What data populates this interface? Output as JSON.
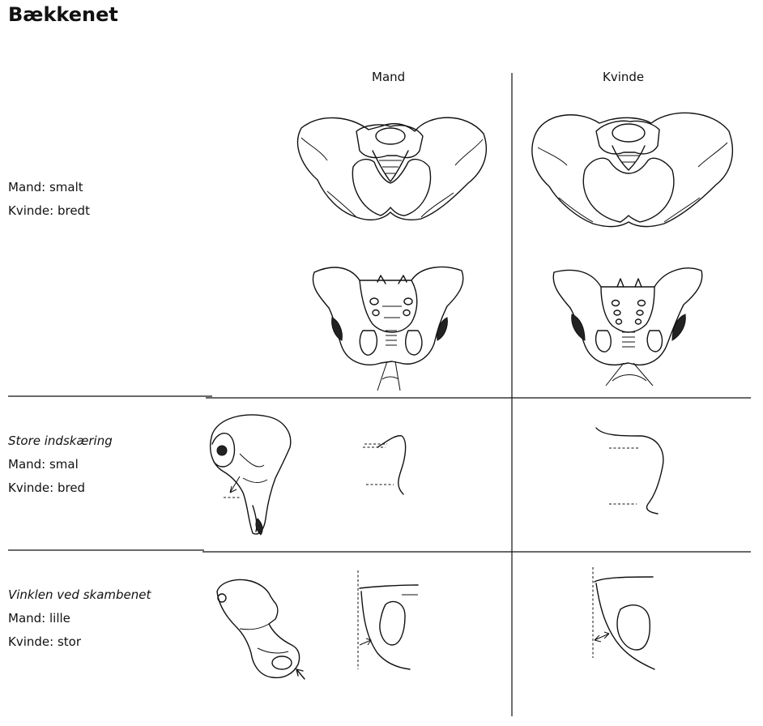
{
  "title": "Bækkenet",
  "columns": {
    "male": "Mand",
    "female": "Kvinde"
  },
  "rows": [
    {
      "heading": "",
      "lines": [
        "Mand: smalt",
        "Kvinde: bredt"
      ]
    },
    {
      "heading": "Store indskæring",
      "lines": [
        "Mand: smal",
        "Kvinde: bred"
      ]
    },
    {
      "heading": "Vinklen ved skambenet",
      "lines": [
        "Mand: lille",
        "Kvinde: stor"
      ]
    }
  ]
}
